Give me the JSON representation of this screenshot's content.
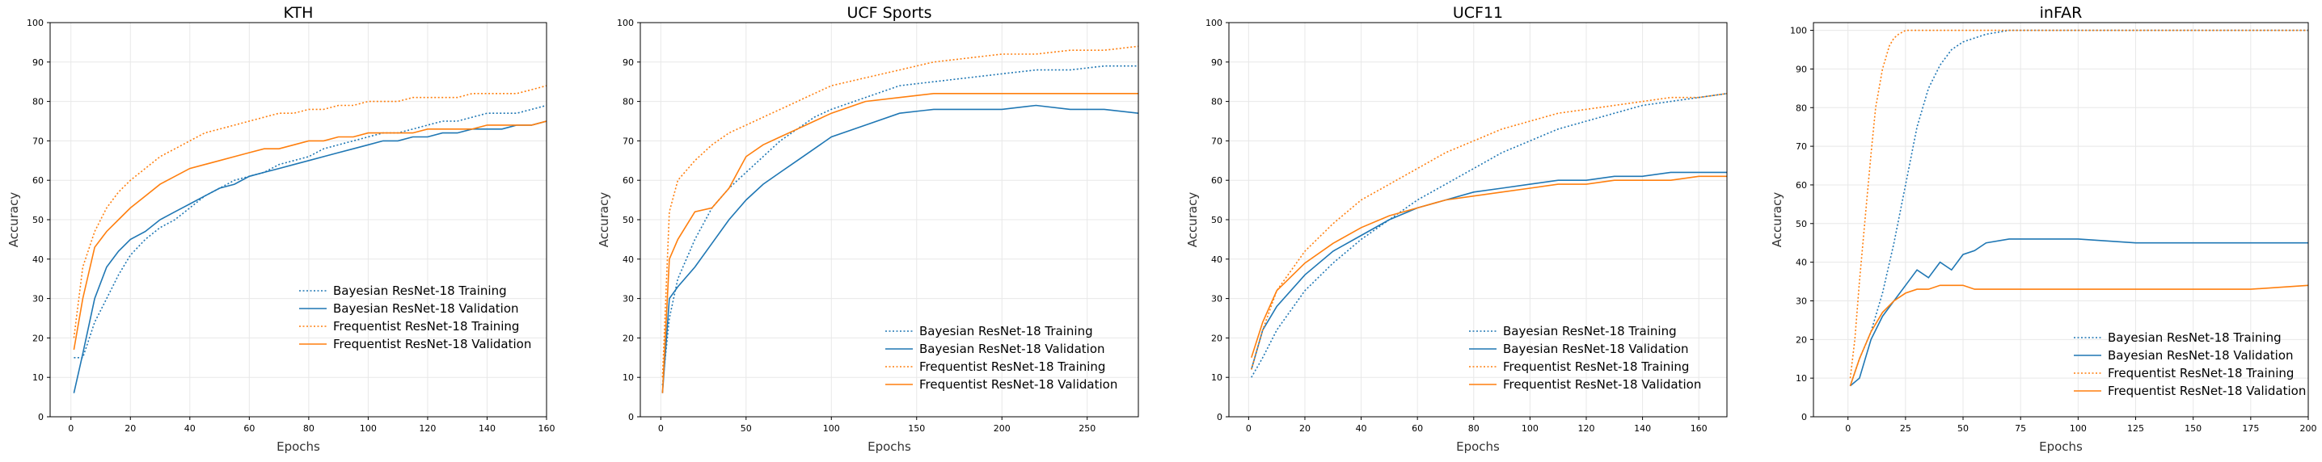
{
  "figure": {
    "background": "#ffffff"
  },
  "colors": {
    "bayesian": "#1f77b4",
    "frequentist": "#ff7f0e",
    "grid": "#e8e8e8"
  },
  "legend_entries": [
    {
      "label": "Bayesian ResNet-18 Training",
      "color": "#1f77b4",
      "style": "dotted"
    },
    {
      "label": "Bayesian ResNet-18 Validation",
      "color": "#1f77b4",
      "style": "solid"
    },
    {
      "label": "Frequentist ResNet-18 Training",
      "color": "#ff7f0e",
      "style": "dotted"
    },
    {
      "label": "Frequentist ResNet-18 Validation",
      "color": "#ff7f0e",
      "style": "solid"
    }
  ],
  "chart_data": [
    {
      "type": "line",
      "title": "KTH",
      "xlabel": "Epochs",
      "ylabel": "Accuracy",
      "xlim": [
        -7,
        160
      ],
      "ylim": [
        0,
        100
      ],
      "xticks": [
        0,
        20,
        40,
        60,
        80,
        100,
        120,
        140,
        160
      ],
      "yticks": [
        0,
        10,
        20,
        30,
        40,
        50,
        60,
        70,
        80,
        90,
        100
      ],
      "grid": true,
      "legend": "lower-right",
      "series": [
        {
          "name": "Bayesian ResNet-18 Training",
          "color": "#1f77b4",
          "style": "dotted",
          "x": [
            1,
            4,
            8,
            12,
            16,
            20,
            25,
            30,
            35,
            40,
            45,
            50,
            55,
            60,
            65,
            70,
            75,
            80,
            85,
            90,
            95,
            100,
            105,
            110,
            115,
            120,
            125,
            130,
            135,
            140,
            145,
            150,
            155,
            160
          ],
          "y": [
            15,
            15,
            24,
            30,
            36,
            41,
            45,
            48,
            50,
            53,
            56,
            58,
            60,
            61,
            62,
            64,
            65,
            66,
            68,
            69,
            70,
            71,
            72,
            72,
            73,
            74,
            75,
            75,
            76,
            77,
            77,
            77,
            78,
            79
          ]
        },
        {
          "name": "Bayesian ResNet-18 Validation",
          "color": "#1f77b4",
          "style": "solid",
          "x": [
            1,
            4,
            8,
            12,
            16,
            20,
            25,
            30,
            35,
            40,
            45,
            50,
            55,
            60,
            65,
            70,
            75,
            80,
            85,
            90,
            95,
            100,
            105,
            110,
            115,
            120,
            125,
            130,
            135,
            140,
            145,
            150,
            155,
            160
          ],
          "y": [
            6,
            16,
            30,
            38,
            42,
            45,
            47,
            50,
            52,
            54,
            56,
            58,
            59,
            61,
            62,
            63,
            64,
            65,
            66,
            67,
            68,
            69,
            70,
            70,
            71,
            71,
            72,
            72,
            73,
            73,
            73,
            74,
            74,
            75
          ]
        },
        {
          "name": "Frequentist ResNet-18 Training",
          "color": "#ff7f0e",
          "style": "dotted",
          "x": [
            1,
            4,
            8,
            12,
            16,
            20,
            25,
            30,
            35,
            40,
            45,
            50,
            55,
            60,
            65,
            70,
            75,
            80,
            85,
            90,
            95,
            100,
            105,
            110,
            115,
            120,
            125,
            130,
            135,
            140,
            145,
            150,
            155,
            160
          ],
          "y": [
            20,
            38,
            47,
            53,
            57,
            60,
            63,
            66,
            68,
            70,
            72,
            73,
            74,
            75,
            76,
            77,
            77,
            78,
            78,
            79,
            79,
            80,
            80,
            80,
            81,
            81,
            81,
            81,
            82,
            82,
            82,
            82,
            83,
            84
          ]
        },
        {
          "name": "Frequentist ResNet-18 Validation",
          "color": "#ff7f0e",
          "style": "solid",
          "x": [
            1,
            4,
            8,
            12,
            16,
            20,
            25,
            30,
            35,
            40,
            45,
            50,
            55,
            60,
            65,
            70,
            75,
            80,
            85,
            90,
            95,
            100,
            105,
            110,
            115,
            120,
            125,
            130,
            135,
            140,
            145,
            150,
            155,
            160
          ],
          "y": [
            17,
            30,
            43,
            47,
            50,
            53,
            56,
            59,
            61,
            63,
            64,
            65,
            66,
            67,
            68,
            68,
            69,
            70,
            70,
            71,
            71,
            72,
            72,
            72,
            72,
            73,
            73,
            73,
            73,
            74,
            74,
            74,
            74,
            75
          ]
        }
      ]
    },
    {
      "type": "line",
      "title": "UCF Sports",
      "xlabel": "Epochs",
      "ylabel": "Accuracy",
      "xlim": [
        -12,
        280
      ],
      "ylim": [
        0,
        100
      ],
      "xticks": [
        0,
        50,
        100,
        150,
        200,
        250
      ],
      "yticks": [
        0,
        10,
        20,
        30,
        40,
        50,
        60,
        70,
        80,
        90,
        100
      ],
      "grid": true,
      "legend": "lower-right",
      "series": [
        {
          "name": "Bayesian ResNet-18 Training",
          "color": "#1f77b4",
          "style": "dotted",
          "x": [
            1,
            5,
            10,
            20,
            30,
            40,
            50,
            60,
            70,
            80,
            90,
            100,
            120,
            140,
            160,
            180,
            200,
            220,
            240,
            260,
            280
          ],
          "y": [
            8,
            25,
            35,
            45,
            53,
            58,
            62,
            66,
            70,
            73,
            76,
            78,
            81,
            84,
            85,
            86,
            87,
            88,
            88,
            89,
            89
          ]
        },
        {
          "name": "Bayesian ResNet-18 Validation",
          "color": "#1f77b4",
          "style": "solid",
          "x": [
            1,
            5,
            10,
            20,
            30,
            40,
            50,
            60,
            70,
            80,
            90,
            100,
            120,
            140,
            160,
            180,
            200,
            220,
            240,
            260,
            280
          ],
          "y": [
            6,
            30,
            33,
            38,
            44,
            50,
            55,
            59,
            62,
            65,
            68,
            71,
            74,
            77,
            78,
            78,
            78,
            79,
            78,
            78,
            77
          ]
        },
        {
          "name": "Frequentist ResNet-18 Training",
          "color": "#ff7f0e",
          "style": "dotted",
          "x": [
            1,
            5,
            10,
            20,
            30,
            40,
            50,
            60,
            70,
            80,
            90,
            100,
            120,
            140,
            160,
            180,
            200,
            220,
            240,
            260,
            280
          ],
          "y": [
            10,
            52,
            60,
            65,
            69,
            72,
            74,
            76,
            78,
            80,
            82,
            84,
            86,
            88,
            90,
            91,
            92,
            92,
            93,
            93,
            94
          ]
        },
        {
          "name": "Frequentist ResNet-18 Validation",
          "color": "#ff7f0e",
          "style": "solid",
          "x": [
            1,
            5,
            10,
            20,
            30,
            40,
            50,
            60,
            70,
            80,
            90,
            100,
            120,
            140,
            160,
            180,
            200,
            220,
            240,
            260,
            280
          ],
          "y": [
            6,
            40,
            45,
            52,
            53,
            58,
            66,
            69,
            71,
            73,
            75,
            77,
            80,
            81,
            82,
            82,
            82,
            82,
            82,
            82,
            82
          ]
        }
      ]
    },
    {
      "type": "line",
      "title": "UCF11",
      "xlabel": "Epochs",
      "ylabel": "Accuracy",
      "xlim": [
        -7,
        170
      ],
      "ylim": [
        0,
        100
      ],
      "xticks": [
        0,
        20,
        40,
        60,
        80,
        100,
        120,
        140,
        160
      ],
      "yticks": [
        0,
        10,
        20,
        30,
        40,
        50,
        60,
        70,
        80,
        90,
        100
      ],
      "grid": true,
      "legend": "lower-right",
      "series": [
        {
          "name": "Bayesian ResNet-18 Training",
          "color": "#1f77b4",
          "style": "dotted",
          "x": [
            1,
            5,
            10,
            20,
            30,
            40,
            50,
            60,
            70,
            80,
            90,
            100,
            110,
            120,
            130,
            140,
            150,
            160,
            170
          ],
          "y": [
            10,
            15,
            22,
            32,
            39,
            45,
            50,
            55,
            59,
            63,
            67,
            70,
            73,
            75,
            77,
            79,
            80,
            81,
            82
          ]
        },
        {
          "name": "Bayesian ResNet-18 Validation",
          "color": "#1f77b4",
          "style": "solid",
          "x": [
            1,
            5,
            10,
            20,
            30,
            40,
            50,
            60,
            70,
            80,
            90,
            100,
            110,
            120,
            130,
            140,
            150,
            160,
            170
          ],
          "y": [
            12,
            22,
            28,
            36,
            42,
            46,
            50,
            53,
            55,
            57,
            58,
            59,
            60,
            60,
            61,
            61,
            62,
            62,
            62
          ]
        },
        {
          "name": "Frequentist ResNet-18 Training",
          "color": "#ff7f0e",
          "style": "dotted",
          "x": [
            1,
            5,
            10,
            20,
            30,
            40,
            50,
            60,
            70,
            80,
            90,
            100,
            110,
            120,
            130,
            140,
            150,
            160,
            170
          ],
          "y": [
            12,
            22,
            32,
            42,
            49,
            55,
            59,
            63,
            67,
            70,
            73,
            75,
            77,
            78,
            79,
            80,
            81,
            81,
            82
          ]
        },
        {
          "name": "Frequentist ResNet-18 Validation",
          "color": "#ff7f0e",
          "style": "solid",
          "x": [
            1,
            5,
            10,
            20,
            30,
            40,
            50,
            60,
            70,
            80,
            90,
            100,
            110,
            120,
            130,
            140,
            150,
            160,
            170
          ],
          "y": [
            15,
            24,
            32,
            39,
            44,
            48,
            51,
            53,
            55,
            56,
            57,
            58,
            59,
            59,
            60,
            60,
            60,
            61,
            61
          ]
        }
      ]
    },
    {
      "type": "line",
      "title": "inFAR",
      "xlabel": "Epochs",
      "ylabel": "Accuracy",
      "xlim": [
        -15,
        200
      ],
      "ylim": [
        0,
        102
      ],
      "xticks": [
        0,
        25,
        50,
        75,
        100,
        125,
        150,
        175,
        200
      ],
      "yticks": [
        0,
        10,
        20,
        30,
        40,
        50,
        60,
        70,
        80,
        90,
        100
      ],
      "grid": true,
      "legend": "lower-right",
      "series": [
        {
          "name": "Bayesian ResNet-18 Training",
          "color": "#1f77b4",
          "style": "dotted",
          "x": [
            1,
            5,
            10,
            15,
            20,
            25,
            30,
            35,
            40,
            45,
            50,
            55,
            60,
            70,
            80,
            100,
            125,
            150,
            175,
            200
          ],
          "y": [
            8,
            15,
            22,
            32,
            45,
            60,
            75,
            85,
            91,
            95,
            97,
            98,
            99,
            100,
            100,
            100,
            100,
            100,
            100,
            100
          ]
        },
        {
          "name": "Bayesian ResNet-18 Validation",
          "color": "#1f77b4",
          "style": "solid",
          "x": [
            1,
            5,
            10,
            15,
            20,
            25,
            30,
            35,
            40,
            45,
            50,
            55,
            60,
            70,
            80,
            100,
            125,
            150,
            175,
            200
          ],
          "y": [
            8,
            10,
            20,
            26,
            30,
            34,
            38,
            36,
            40,
            38,
            42,
            43,
            45,
            46,
            46,
            46,
            45,
            45,
            45,
            45
          ]
        },
        {
          "name": "Frequentist ResNet-18 Training",
          "color": "#ff7f0e",
          "style": "dotted",
          "x": [
            1,
            3,
            5,
            8,
            10,
            12,
            15,
            18,
            20,
            22,
            25,
            30,
            40,
            60,
            80,
            100,
            125,
            150,
            175,
            200
          ],
          "y": [
            10,
            20,
            35,
            55,
            68,
            80,
            90,
            96,
            98,
            99,
            100,
            100,
            100,
            100,
            100,
            100,
            100,
            100,
            100,
            100
          ]
        },
        {
          "name": "Frequentist ResNet-18 Validation",
          "color": "#ff7f0e",
          "style": "solid",
          "x": [
            1,
            5,
            10,
            15,
            20,
            25,
            30,
            35,
            40,
            45,
            50,
            55,
            60,
            70,
            80,
            100,
            125,
            150,
            175,
            200
          ],
          "y": [
            8,
            15,
            22,
            27,
            30,
            32,
            33,
            33,
            34,
            34,
            34,
            33,
            33,
            33,
            33,
            33,
            33,
            33,
            33,
            34
          ]
        }
      ]
    }
  ]
}
